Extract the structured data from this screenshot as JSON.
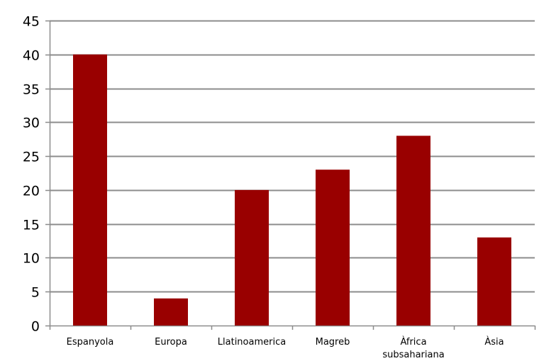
{
  "chart_data": {
    "type": "bar",
    "title": "",
    "xlabel": "",
    "ylabel": "",
    "categories": [
      [
        "Espanyola"
      ],
      [
        "Europa"
      ],
      [
        "Llatinoamerica"
      ],
      [
        "Magreb"
      ],
      [
        "Àfrica",
        "subsahariana"
      ],
      [
        "Àsia"
      ]
    ],
    "values": [
      40,
      4,
      20,
      23,
      28,
      13
    ],
    "ylim": [
      0,
      45
    ],
    "yticks": [
      0,
      5,
      10,
      15,
      20,
      25,
      30,
      35,
      40,
      45
    ],
    "grid": true,
    "legend": "none",
    "colors": {
      "bar": "#990000",
      "grid": "#8c8c8c",
      "axis": "#8c8c8c"
    }
  }
}
